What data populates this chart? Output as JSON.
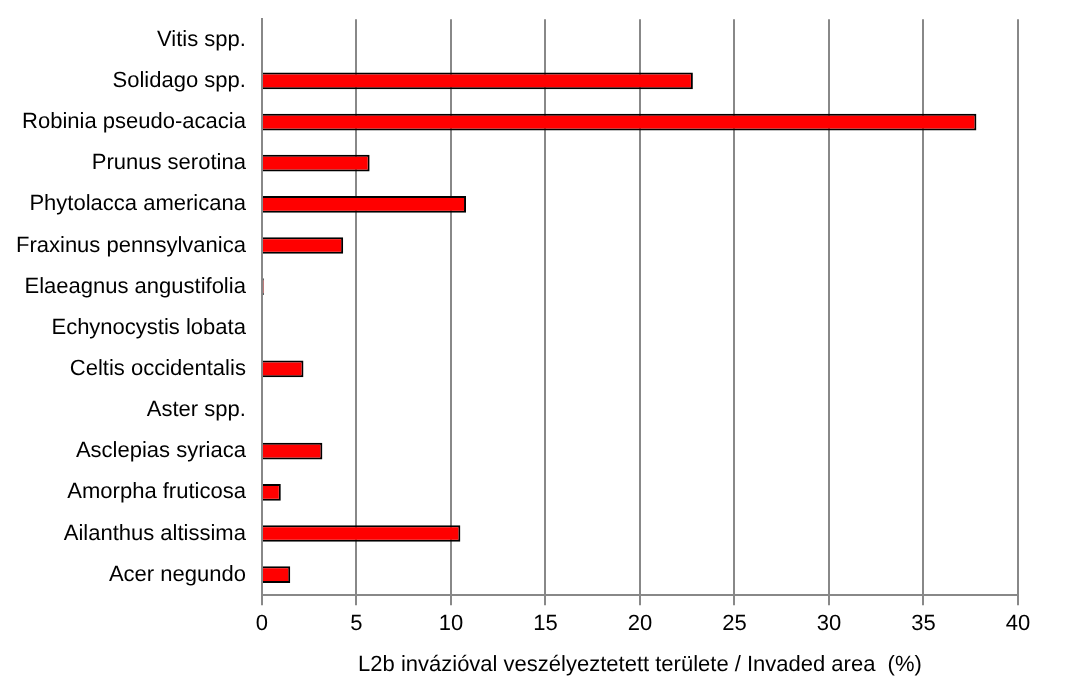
{
  "chart_data": {
    "type": "bar",
    "orientation": "horizontal",
    "xlabel": "L2b invázióval veszélyeztetett területe / Invaded area  (%)",
    "categories": [
      "Vitis spp.",
      "Solidago spp.",
      "Robinia pseudo-acacia",
      "Prunus serotina",
      "Phytolacca americana",
      "Fraxinus pennsylvanica",
      "Elaeagnus angustifolia",
      "Echynocystis lobata",
      "Celtis occidentalis",
      "Aster spp.",
      "Asclepias syriaca",
      "Amorpha fruticosa",
      "Ailanthus altissima",
      "Acer negundo"
    ],
    "values": [
      0,
      22.8,
      37.8,
      5.7,
      10.8,
      4.3,
      0.1,
      0,
      2.2,
      0,
      3.2,
      1.0,
      10.5,
      1.5
    ],
    "color": "#ff0000",
    "xlim": [
      0,
      40
    ],
    "xticks": [
      0,
      5,
      10,
      15,
      20,
      25,
      30,
      35,
      40
    ],
    "grid": "x",
    "legend": false
  }
}
